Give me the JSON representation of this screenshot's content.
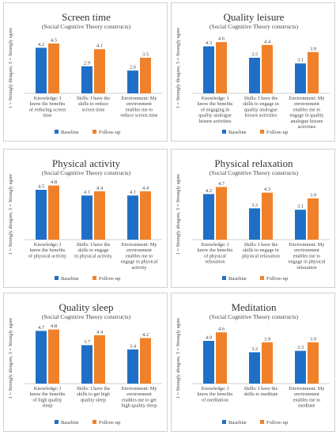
{
  "colors": {
    "baseline": "#1f6fc6",
    "followup": "#f0812a",
    "axis": "#bfbfbf"
  },
  "chart_data": [
    {
      "type": "bar",
      "title": "Screen time",
      "subtitle": "(Social Cognitive Theory constructs)",
      "ylabel": "1 = Strongly disagree, 5 = Strongly agree",
      "ylim": [
        1,
        5
      ],
      "categories": [
        [
          "Knowledge: I",
          "know the benefits",
          "of reducing screen",
          "time"
        ],
        [
          "Skills: I have the",
          "skills to reduce",
          "screen time"
        ],
        [
          "Environment: My",
          "environment",
          "enables me to",
          "reduce screen time"
        ]
      ],
      "series": [
        {
          "name": "Baseline",
          "values": [
            4.2,
            2.9,
            2.6
          ],
          "labels": [
            "4.2",
            "2.9",
            "2.6"
          ]
        },
        {
          "name": "Follow-up",
          "values": [
            4.5,
            4.1,
            3.5
          ],
          "labels": [
            "4.5",
            "4.1",
            "3.5"
          ]
        }
      ]
    },
    {
      "type": "bar",
      "title": "Quality leisure",
      "subtitle": "(Social Cognitive Theory constructs)",
      "ylabel": "1 = Strongly disagree, 5 = Strongly agree",
      "ylim": [
        1,
        5
      ],
      "categories": [
        [
          "Knowledge: I",
          "know the benefits",
          "of engaging in",
          "quality analogue",
          "leisure activities"
        ],
        [
          "Skills: I have the",
          "skills to engage in",
          "quality analogue",
          "leisure activities"
        ],
        [
          "Environment: My",
          "environment",
          "enables me to",
          "engage in quality",
          "analogue leisure",
          "activities"
        ]
      ],
      "series": [
        {
          "name": "Baseline",
          "values": [
            4.3,
            3.5,
            3.1
          ],
          "labels": [
            "4.3",
            "3.5",
            "3.1"
          ]
        },
        {
          "name": "Follow-up",
          "values": [
            4.6,
            4.4,
            3.9
          ],
          "labels": [
            "4.6",
            "4.4",
            "3.9"
          ]
        }
      ]
    },
    {
      "type": "bar",
      "title": "Physical activity",
      "subtitle": "(Social Cognitive Theory constructs)",
      "ylabel": "1 = Strongly disagree, 5 = Strongly agree",
      "ylim": [
        1,
        5
      ],
      "categories": [
        [
          "Knowledge: I",
          "know the benefits",
          "of physical activity"
        ],
        [
          "Skills: I have the",
          "skills to engage",
          "in physical activity"
        ],
        [
          "Environment: My",
          "environment",
          "enables me to",
          "engage in physical",
          "activity"
        ]
      ],
      "series": [
        {
          "name": "Baseline",
          "values": [
            4.5,
            4.1,
            4.1
          ],
          "labels": [
            "4.5",
            "4.1",
            "4.1"
          ]
        },
        {
          "name": "Follow-up",
          "values": [
            4.8,
            4.4,
            4.4
          ],
          "labels": [
            "4.8",
            "4.4",
            "4.4"
          ]
        }
      ]
    },
    {
      "type": "bar",
      "title": "Physical relaxation",
      "subtitle": "(Social Cognitive Theory constructs)",
      "ylabel": "1 = Strongly disagree, 5 = Strongly agree",
      "ylim": [
        1,
        5
      ],
      "categories": [
        [
          "Knowledge: I",
          "know the benefits",
          "of physical",
          "relaxation"
        ],
        [
          "Skills: I have the",
          "skills to engage in",
          "physical relaxation"
        ],
        [
          "Environment: My",
          "environment",
          "enables me to",
          "engage in physical",
          "relaxation"
        ]
      ],
      "series": [
        {
          "name": "Baseline",
          "values": [
            4.2,
            3.2,
            3.1
          ],
          "labels": [
            "4.2",
            "3.2",
            "3.1"
          ]
        },
        {
          "name": "Follow-up",
          "values": [
            4.7,
            4.3,
            3.9
          ],
          "labels": [
            "4.7",
            "4.3",
            "3.9"
          ]
        }
      ]
    },
    {
      "type": "bar",
      "title": "Quality sleep",
      "subtitle": "(Social Cognitive Theory constructs)",
      "ylabel": "1 = Strongly disagree, 5 = Strongly agree",
      "ylim": [
        1,
        5
      ],
      "categories": [
        [
          "Knowledge: I",
          "know the benefits",
          "of high quality",
          "sleep"
        ],
        [
          "Skills: I have the",
          "skills to get high",
          "quality sleep"
        ],
        [
          "Environment: My",
          "environment",
          "enables me to get",
          "high quality sleep"
        ]
      ],
      "series": [
        {
          "name": "Baseline",
          "values": [
            4.7,
            3.7,
            3.4
          ],
          "labels": [
            "4.7",
            "3.7",
            "3.4"
          ]
        },
        {
          "name": "Follow-up",
          "values": [
            4.8,
            4.4,
            4.2
          ],
          "labels": [
            "4.8",
            "4.4",
            "4.2"
          ]
        }
      ]
    },
    {
      "type": "bar",
      "title": "Meditation",
      "subtitle": "(Social Cognitive Theory constructs)",
      "ylabel": "1 = Strongly disagree, 5 = Strongly agree",
      "ylim": [
        1,
        5
      ],
      "categories": [
        [
          "Knowledge: I",
          "know the benefits",
          "of meditation"
        ],
        [
          "Skills: I have the",
          "skills to meditate"
        ],
        [
          "Environment: My",
          "environment",
          "enables me to",
          "meditate"
        ]
      ],
      "series": [
        {
          "name": "Baseline",
          "values": [
            4.0,
            3.2,
            3.3
          ],
          "labels": [
            "4.0",
            "3.2",
            "3.3"
          ]
        },
        {
          "name": "Follow-up",
          "values": [
            4.6,
            3.9,
            3.9
          ],
          "labels": [
            "4.6",
            "3.9",
            "3.9"
          ]
        }
      ]
    }
  ]
}
